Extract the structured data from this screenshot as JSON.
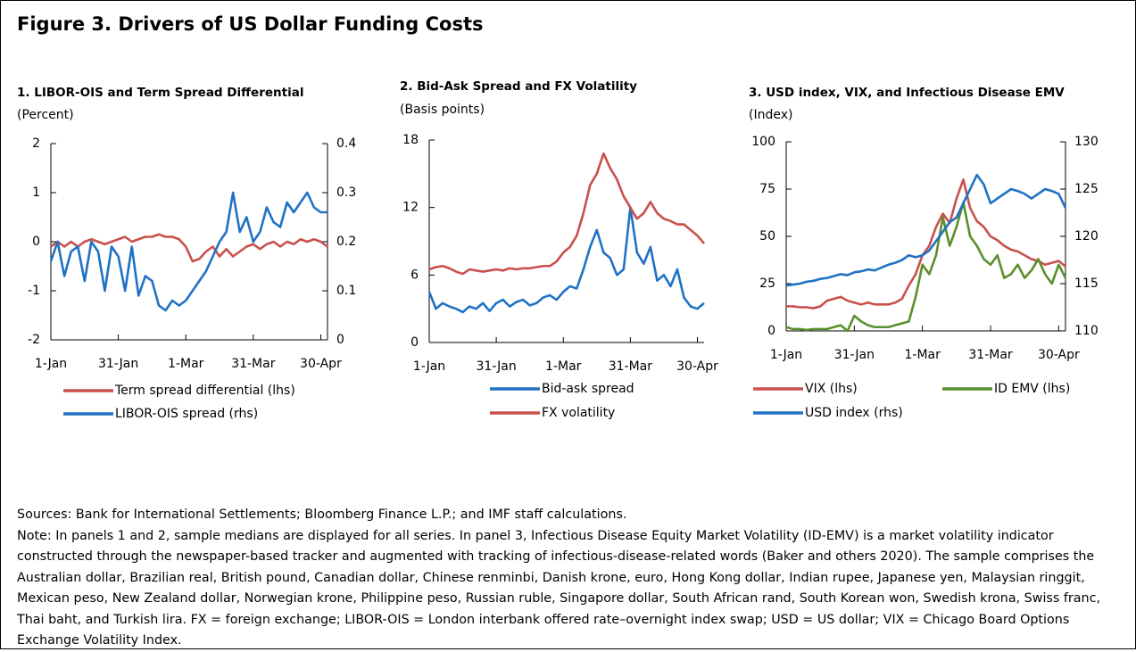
{
  "title": "Figure 3. Drivers of US Dollar Funding Costs",
  "chart_data": [
    {
      "type": "line",
      "title": "1. LIBOR-OIS and Term Spread Differential",
      "subtitle": "(Percent)",
      "categories": [
        "1-Jan",
        null,
        null,
        null,
        null,
        null,
        null,
        null,
        null,
        null,
        "31-Jan",
        null,
        null,
        null,
        null,
        null,
        null,
        null,
        null,
        null,
        "1-Mar",
        null,
        null,
        null,
        null,
        null,
        null,
        null,
        null,
        null,
        "31-Mar",
        null,
        null,
        null,
        null,
        null,
        null,
        null,
        null,
        null,
        "30-Apr",
        null
      ],
      "ylim": [
        -2,
        2
      ],
      "yticks": [
        -2,
        -1,
        0,
        1,
        2
      ],
      "y2lim": [
        0,
        0.4
      ],
      "y2ticks": [
        0,
        0.1,
        0.2,
        0.3,
        0.4
      ],
      "series": [
        {
          "name": "Term spread differential (lhs)",
          "color": "#c9504c",
          "axis": "y",
          "values": [
            -0.1,
            0.0,
            -0.1,
            0.0,
            -0.1,
            0.0,
            0.05,
            0.0,
            -0.05,
            0.0,
            0.05,
            0.1,
            0.0,
            0.05,
            0.1,
            0.1,
            0.15,
            0.1,
            0.1,
            0.05,
            -0.1,
            -0.4,
            -0.35,
            -0.2,
            -0.1,
            -0.3,
            -0.15,
            -0.3,
            -0.2,
            -0.1,
            -0.05,
            -0.15,
            -0.05,
            0.0,
            -0.1,
            0.0,
            -0.05,
            0.05,
            0.0,
            0.05,
            0.0,
            -0.1
          ]
        },
        {
          "name": "LIBOR-OIS spread (rhs)",
          "color": "#1f72c4",
          "axis": "y2",
          "values": [
            0.16,
            0.2,
            0.13,
            0.18,
            0.19,
            0.12,
            0.2,
            0.18,
            0.1,
            0.19,
            0.17,
            0.1,
            0.19,
            0.09,
            0.13,
            0.12,
            0.07,
            0.06,
            0.08,
            0.07,
            0.08,
            0.1,
            0.12,
            0.14,
            0.17,
            0.2,
            0.22,
            0.3,
            0.22,
            0.25,
            0.2,
            0.22,
            0.27,
            0.24,
            0.23,
            0.28,
            0.26,
            0.28,
            0.3,
            0.27,
            0.26,
            0.26
          ]
        }
      ]
    },
    {
      "type": "line",
      "title": "2. Bid-Ask Spread and FX Volatility",
      "subtitle": "(Basis points)",
      "categories": [
        "1-Jan",
        null,
        null,
        null,
        null,
        null,
        null,
        null,
        null,
        null,
        "31-Jan",
        null,
        null,
        null,
        null,
        null,
        null,
        null,
        null,
        null,
        "1-Mar",
        null,
        null,
        null,
        null,
        null,
        null,
        null,
        null,
        null,
        "31-Mar",
        null,
        null,
        null,
        null,
        null,
        null,
        null,
        null,
        null,
        "30-Apr",
        null
      ],
      "ylim": [
        0,
        18
      ],
      "yticks": [
        0,
        6,
        12,
        18
      ],
      "series": [
        {
          "name": "Bid-ask spread",
          "color": "#1f72c4",
          "axis": "y",
          "values": [
            4.5,
            3.0,
            3.5,
            3.2,
            3.0,
            2.7,
            3.2,
            3.0,
            3.5,
            2.8,
            3.5,
            3.8,
            3.2,
            3.6,
            3.8,
            3.3,
            3.5,
            4.0,
            4.2,
            3.8,
            4.5,
            5.0,
            4.8,
            6.5,
            8.5,
            10.0,
            8.0,
            7.5,
            6.0,
            6.5,
            12.0,
            8.0,
            7.0,
            8.5,
            5.5,
            6.0,
            5.0,
            6.5,
            4.0,
            3.2,
            3.0,
            3.5
          ]
        },
        {
          "name": "FX volatility",
          "color": "#c9504c",
          "axis": "y",
          "values": [
            6.5,
            6.7,
            6.8,
            6.6,
            6.3,
            6.1,
            6.5,
            6.4,
            6.3,
            6.4,
            6.5,
            6.4,
            6.6,
            6.5,
            6.6,
            6.6,
            6.7,
            6.8,
            6.8,
            7.2,
            8.0,
            8.5,
            9.5,
            11.5,
            14,
            15,
            16.8,
            15.5,
            14.5,
            13,
            12,
            11,
            11.5,
            12.5,
            11.5,
            11,
            10.8,
            10.5,
            10.5,
            10,
            9.5,
            8.8
          ]
        }
      ]
    },
    {
      "type": "line",
      "title": "3. USD index, VIX, and Infectious Disease EMV",
      "subtitle": "(Index)",
      "categories": [
        "1-Jan",
        null,
        null,
        null,
        null,
        null,
        null,
        null,
        null,
        null,
        "31-Jan",
        null,
        null,
        null,
        null,
        null,
        null,
        null,
        null,
        null,
        "1-Mar",
        null,
        null,
        null,
        null,
        null,
        null,
        null,
        null,
        null,
        "31-Mar",
        null,
        null,
        null,
        null,
        null,
        null,
        null,
        null,
        null,
        "30-Apr",
        null
      ],
      "ylim": [
        0,
        100
      ],
      "yticks": [
        0,
        25,
        50,
        75,
        100
      ],
      "y2lim": [
        110,
        130
      ],
      "y2ticks": [
        110,
        115,
        120,
        125,
        130
      ],
      "series": [
        {
          "name": "VIX (lhs)",
          "color": "#c9504c",
          "axis": "y",
          "values": [
            13,
            13,
            12.5,
            12.5,
            12,
            13,
            16,
            17,
            18,
            16,
            15,
            14,
            15,
            14,
            14,
            14,
            15,
            17,
            24,
            30,
            40,
            45,
            55,
            62,
            57,
            70,
            80,
            65,
            58,
            55,
            50,
            48,
            45,
            43,
            42,
            40,
            38,
            37,
            35,
            36,
            37,
            34
          ]
        },
        {
          "name": "ID EMV (lhs)",
          "color": "#5a8f2c",
          "axis": "y",
          "values": [
            2,
            1,
            1,
            0.5,
            1,
            1,
            1,
            2,
            3,
            0,
            8,
            5,
            3,
            2,
            2,
            2,
            3,
            4,
            5,
            18,
            35,
            30,
            40,
            60,
            45,
            55,
            68,
            50,
            45,
            38,
            35,
            40,
            28,
            30,
            35,
            28,
            32,
            38,
            30,
            25,
            35,
            28
          ]
        },
        {
          "name": "USD index (rhs)",
          "color": "#1f72c4",
          "axis": "y2",
          "values": [
            114.8,
            114.9,
            115,
            115.2,
            115.3,
            115.5,
            115.6,
            115.8,
            116,
            115.9,
            116.2,
            116.3,
            116.5,
            116.4,
            116.7,
            117,
            117.2,
            117.5,
            118,
            117.8,
            118,
            118.5,
            119.5,
            120.5,
            121.5,
            122,
            123.5,
            125,
            126.5,
            125.5,
            123.5,
            124,
            124.5,
            125,
            124.8,
            124.5,
            124,
            124.5,
            125,
            124.8,
            124.5,
            123
          ]
        }
      ]
    }
  ],
  "sources": "Sources: Bank for International Settlements; Bloomberg Finance L.P.; and IMF staff calculations.",
  "note": "Note: In panels 1 and 2, sample medians are displayed for all series. In panel 3, Infectious Disease Equity Market Volatility (ID-EMV) is a market volatility indicator constructed through the newspaper-based tracker and augmented with tracking of infectious-disease-related words (Baker and others 2020). The sample comprises the Australian dollar, Brazilian real, British pound, Canadian dollar, Chinese renminbi, Danish krone, euro, Hong Kong dollar, Indian rupee, Japanese yen, Malaysian ringgit, Mexican peso, New Zealand dollar, Norwegian krone, Philippine peso, Russian ruble, Singapore dollar, South African rand, South Korean won, Swedish krona, Swiss franc, Thai baht, and Turkish lira. FX = foreign exchange; LIBOR-OIS = London interbank offered rate–overnight index swap; USD = US dollar; VIX = Chicago Board Options Exchange Volatility Index."
}
